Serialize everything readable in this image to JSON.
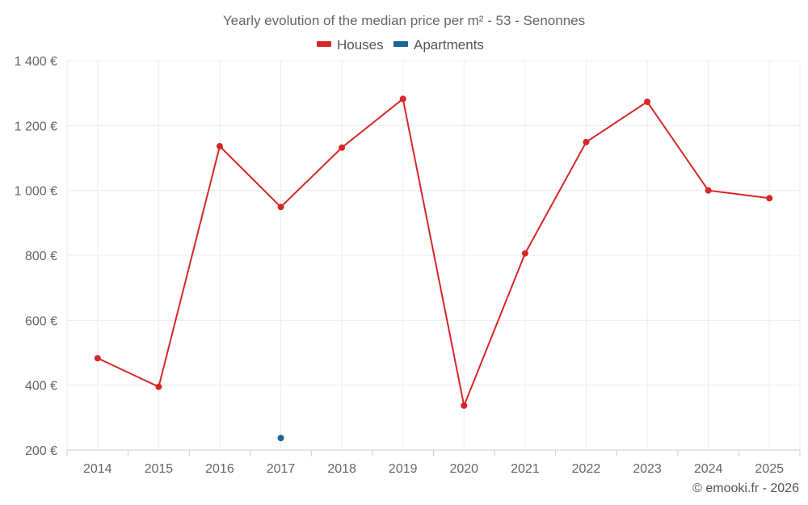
{
  "chart_data": {
    "type": "line",
    "title": "Yearly evolution of the median price per m² - 53 - Senonnes",
    "categories": [
      "2014",
      "2015",
      "2016",
      "2017",
      "2018",
      "2019",
      "2020",
      "2021",
      "2022",
      "2023",
      "2024",
      "2025"
    ],
    "series": [
      {
        "name": "Houses",
        "color": "#d62728",
        "values": [
          483,
          395,
          1136,
          949,
          1132,
          1282,
          337,
          806,
          1149,
          1273,
          1000,
          976
        ]
      },
      {
        "name": "Apartments",
        "color": "#1a6496",
        "values": [
          null,
          null,
          null,
          237,
          null,
          null,
          null,
          null,
          null,
          null,
          null,
          null
        ]
      }
    ],
    "ylim": [
      200,
      1400
    ],
    "yticks": [
      200,
      400,
      600,
      800,
      1000,
      1200,
      1400
    ],
    "ytick_labels": [
      "200 €",
      "400 €",
      "600 €",
      "800 €",
      "1 000 €",
      "1 200 €",
      "1 400 €"
    ],
    "xlabel": "",
    "ylabel": "",
    "grid": true,
    "legend_position": "top-center"
  },
  "credit": "© emooki.fr - 2026"
}
